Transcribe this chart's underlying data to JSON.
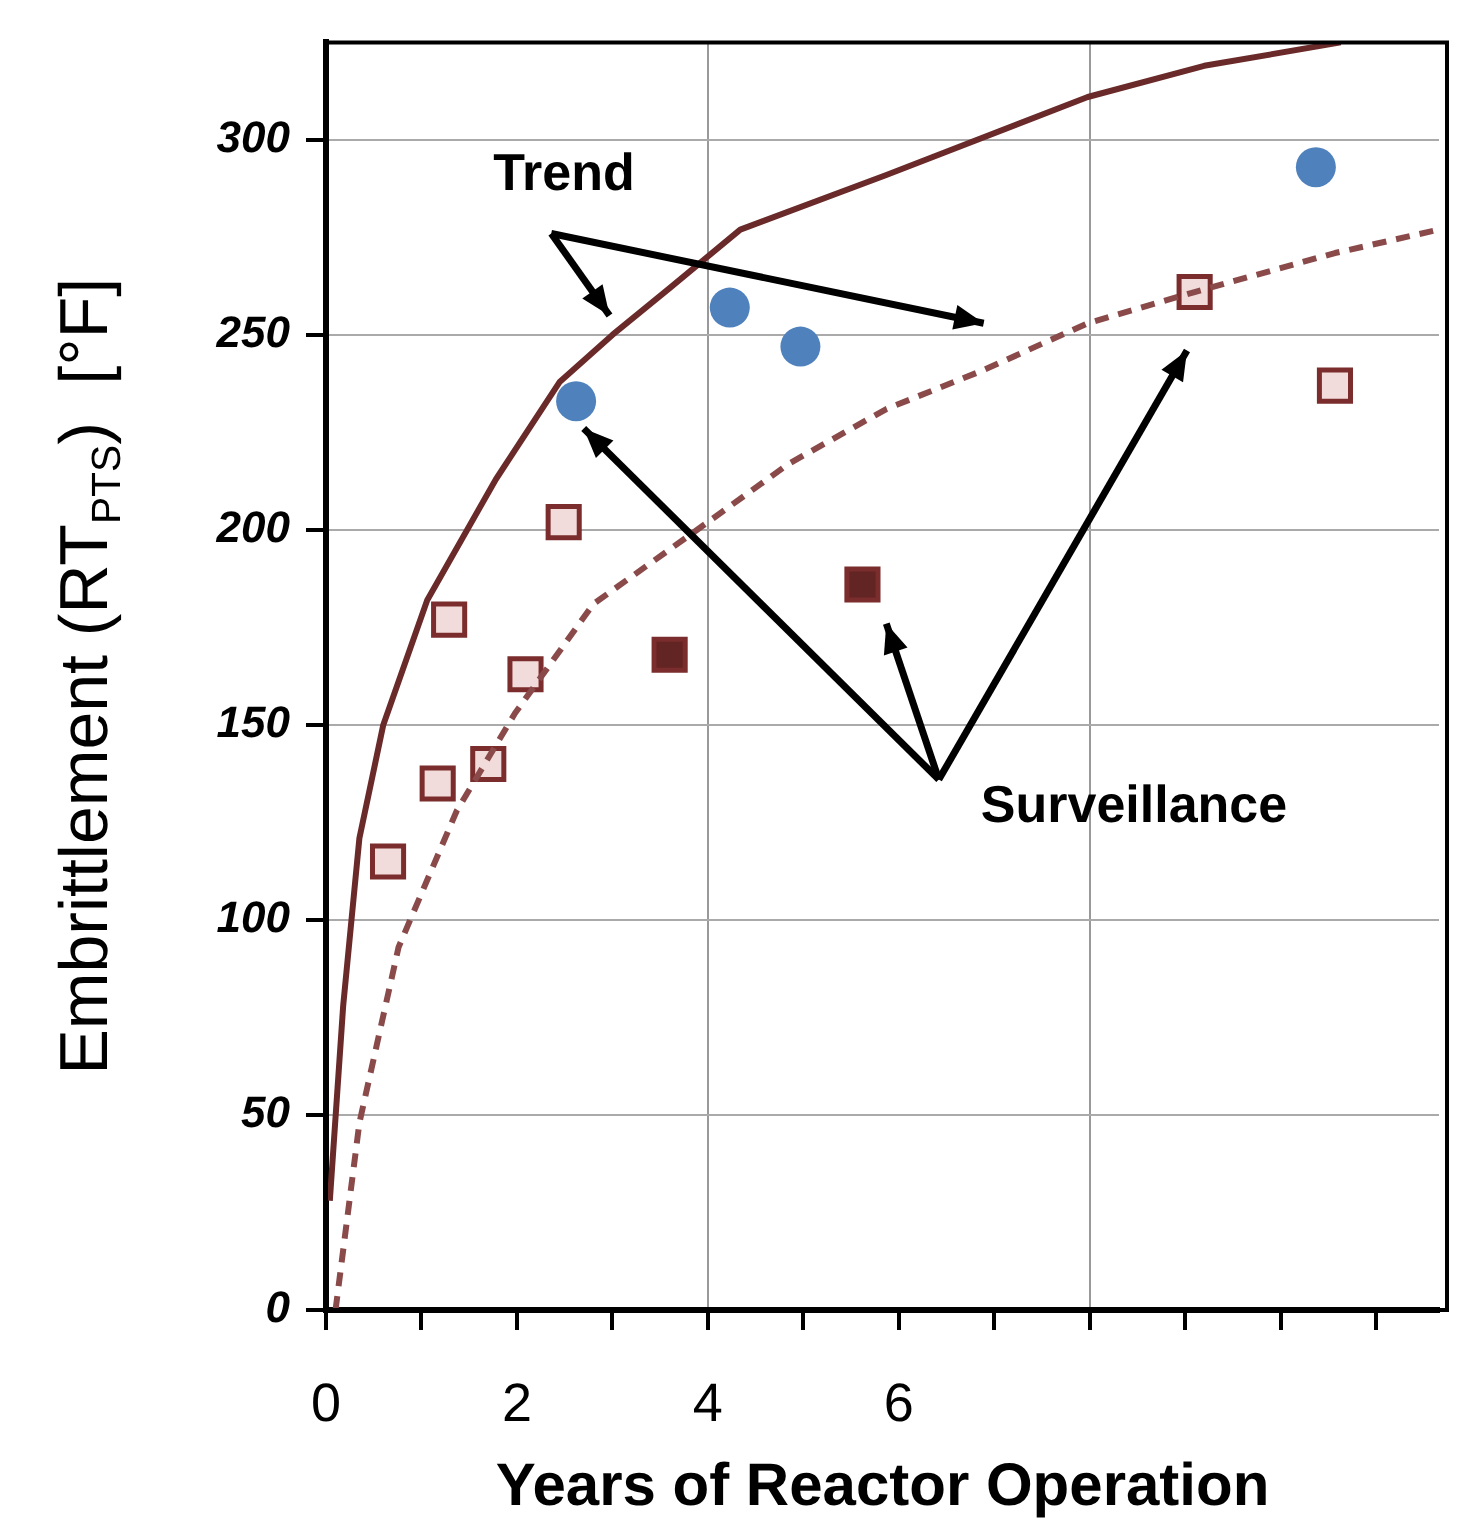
{
  "chart_data": {
    "type": "scatter",
    "xlabel": "Years of Reactor Operation",
    "ylabel": "Embrittlement (RT$_{PTS}$)  [°F]",
    "xlim": [
      0,
      11.66
    ],
    "ylim": [
      0,
      325
    ],
    "xticks": [
      0,
      {
        "value": 1,
        "label": null
      },
      2,
      {
        "value": 3,
        "label": null
      },
      4,
      {
        "value": 5,
        "label": null
      },
      6,
      {
        "value": 7,
        "label": null
      },
      {
        "value": 8,
        "label": null
      },
      {
        "value": 9,
        "label": null
      },
      {
        "value": 10,
        "label": null
      },
      {
        "value": 11,
        "label": null
      }
    ],
    "yticks": [
      0,
      50,
      100,
      150,
      200,
      250,
      300
    ],
    "grid": true,
    "legend": false,
    "series": [
      {
        "type": "line",
        "color": "#6b2a2a",
        "marker": "none",
        "line_style": "solid",
        "x": [
          0.04,
          0.18,
          0.35,
          0.6,
          1.06,
          1.78,
          2.45,
          3.0,
          3.6,
          4.34,
          5.87,
          7.98,
          9.2,
          10.63
        ],
        "values": [
          28,
          78,
          121,
          150,
          182,
          213,
          238,
          250,
          262,
          277,
          291,
          311,
          319,
          325
        ]
      },
      {
        "type": "line",
        "color": "#8b4a4a",
        "marker": "none",
        "line_style": "dashed",
        "x": [
          0.1,
          0.35,
          0.76,
          1.37,
          1.98,
          2.8,
          4.0,
          4.85,
          5.87,
          6.89,
          7.98,
          9.1,
          10.57,
          11.66
        ],
        "values": [
          0,
          48,
          93,
          128,
          153,
          181,
          202,
          217,
          231,
          241,
          253,
          261,
          271,
          277
        ]
      },
      {
        "color": "#4f81bd",
        "marker": "circle",
        "x": [
          2.62,
          4.23,
          4.97,
          10.37
        ],
        "values": [
          233,
          257,
          247,
          293
        ]
      },
      {
        "color": "#f2dcdb",
        "marker": "square",
        "x": [
          0.65,
          1.17,
          1.29,
          1.7,
          2.09,
          2.49,
          9.1,
          10.57
        ],
        "values": [
          115,
          135,
          177,
          140,
          163,
          202,
          261,
          237
        ]
      },
      {
        "color": "#632523",
        "marker": "square",
        "x": [
          3.6,
          5.62
        ],
        "values": [
          168,
          186
        ]
      }
    ],
    "annotations": [
      "Trend",
      "Surveillance"
    ]
  }
}
